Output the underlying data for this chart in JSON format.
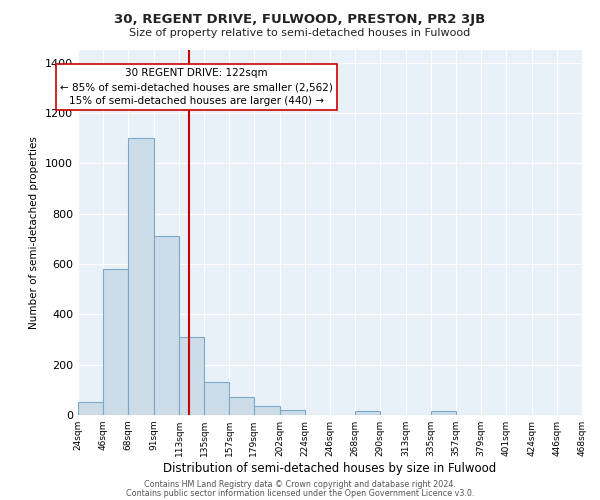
{
  "title": "30, REGENT DRIVE, FULWOOD, PRESTON, PR2 3JB",
  "subtitle": "Size of property relative to semi-detached houses in Fulwood",
  "xlabel": "Distribution of semi-detached houses by size in Fulwood",
  "ylabel": "Number of semi-detached properties",
  "bin_edges": [
    24,
    46,
    68,
    91,
    113,
    135,
    157,
    179,
    202,
    224,
    246,
    268,
    290,
    313,
    335,
    357,
    379,
    401,
    424,
    446,
    468
  ],
  "bin_values": [
    50,
    580,
    1100,
    710,
    310,
    130,
    70,
    35,
    20,
    0,
    0,
    15,
    0,
    0,
    15,
    0,
    0,
    0,
    0,
    0
  ],
  "bar_facecolor": "#ccdce8",
  "bar_edgecolor": "#7aaac8",
  "property_size": 122,
  "vline_color": "#cc0000",
  "annotation_title": "30 REGENT DRIVE: 122sqm",
  "annotation_line1": "← 85% of semi-detached houses are smaller (2,562)",
  "annotation_line2": "15% of semi-detached houses are larger (440) →",
  "annotation_box_edgecolor": "#cc0000",
  "annotation_box_facecolor": "#ffffff",
  "ylim": [
    0,
    1450
  ],
  "yticks": [
    0,
    200,
    400,
    600,
    800,
    1000,
    1200,
    1400
  ],
  "background_color": "#e8f0f8",
  "fig_facecolor": "#ffffff",
  "footer_line1": "Contains HM Land Registry data © Crown copyright and database right 2024.",
  "footer_line2": "Contains public sector information licensed under the Open Government Licence v3.0."
}
